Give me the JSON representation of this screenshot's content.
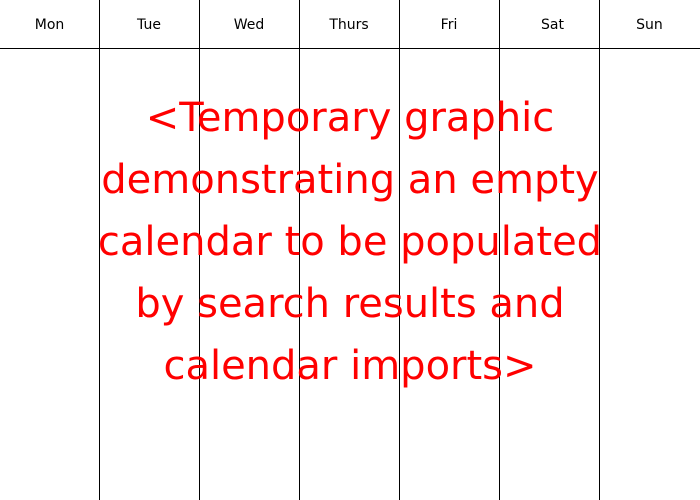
{
  "calendar": {
    "days": [
      "Mon",
      "Tue",
      "Wed",
      "Thurs",
      "Fri",
      "Sat",
      "Sun"
    ]
  },
  "placeholder": {
    "lines": [
      "<Temporary graphic",
      "demonstrating an empty",
      "calendar to be populated",
      "by search results and",
      "calendar imports>"
    ]
  },
  "colors": {
    "grid": "#000000",
    "placeholder_text": "#ff0000"
  }
}
